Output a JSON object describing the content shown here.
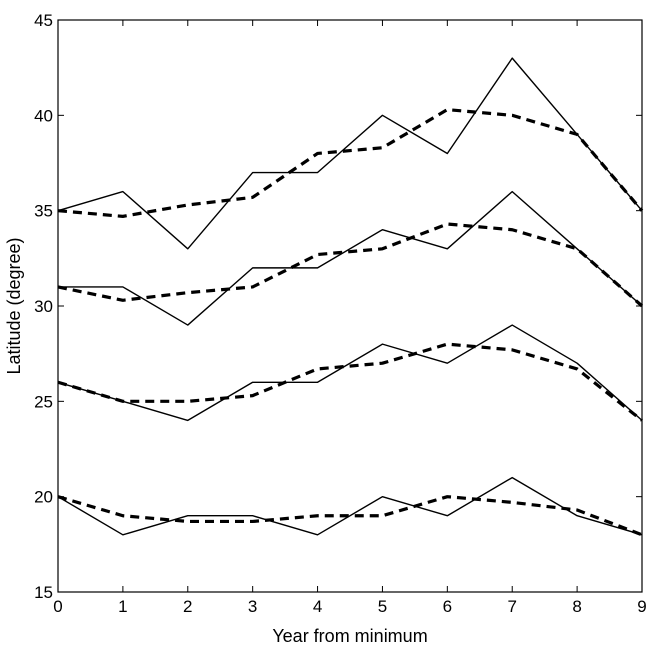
{
  "chart_data": {
    "type": "line",
    "title": "",
    "xlabel": "Year from minimum",
    "ylabel": "Latitude (degree)",
    "xlim": [
      0,
      9
    ],
    "ylim": [
      15,
      45
    ],
    "grid": false,
    "x": [
      0,
      1,
      2,
      3,
      4,
      5,
      6,
      7,
      8,
      9
    ],
    "xticks": [
      "0",
      "1",
      "2",
      "3",
      "4",
      "5",
      "6",
      "7",
      "8",
      "9"
    ],
    "yticks": [
      "15",
      "20",
      "25",
      "30",
      "35",
      "40",
      "45"
    ],
    "series": [
      {
        "style": "solid",
        "color": "#000000",
        "values": [
          35,
          36,
          33,
          37,
          37,
          40,
          38,
          43,
          39,
          35
        ]
      },
      {
        "style": "dashed",
        "color": "#000000",
        "values": [
          35,
          34.7,
          35.3,
          35.7,
          38,
          38.3,
          40.3,
          40,
          39,
          35
        ]
      },
      {
        "style": "solid",
        "color": "#000000",
        "values": [
          31,
          31,
          29,
          32,
          32,
          34,
          33,
          36,
          33,
          30
        ]
      },
      {
        "style": "dashed",
        "color": "#000000",
        "values": [
          31,
          30.3,
          30.7,
          31,
          32.7,
          33,
          34.3,
          34,
          33,
          30
        ]
      },
      {
        "style": "solid",
        "color": "#000000",
        "values": [
          26,
          25,
          24,
          26,
          26,
          28,
          27,
          29,
          27,
          24
        ]
      },
      {
        "style": "dashed",
        "color": "#000000",
        "values": [
          26,
          25,
          25,
          25.3,
          26.7,
          27,
          28,
          27.7,
          26.7,
          24
        ]
      },
      {
        "style": "solid",
        "color": "#000000",
        "values": [
          20,
          18,
          19,
          19,
          18,
          20,
          19,
          21,
          19,
          18
        ]
      },
      {
        "style": "dashed",
        "color": "#000000",
        "values": [
          20,
          19,
          18.7,
          18.7,
          19,
          19,
          20,
          19.7,
          19.3,
          18
        ]
      }
    ]
  }
}
